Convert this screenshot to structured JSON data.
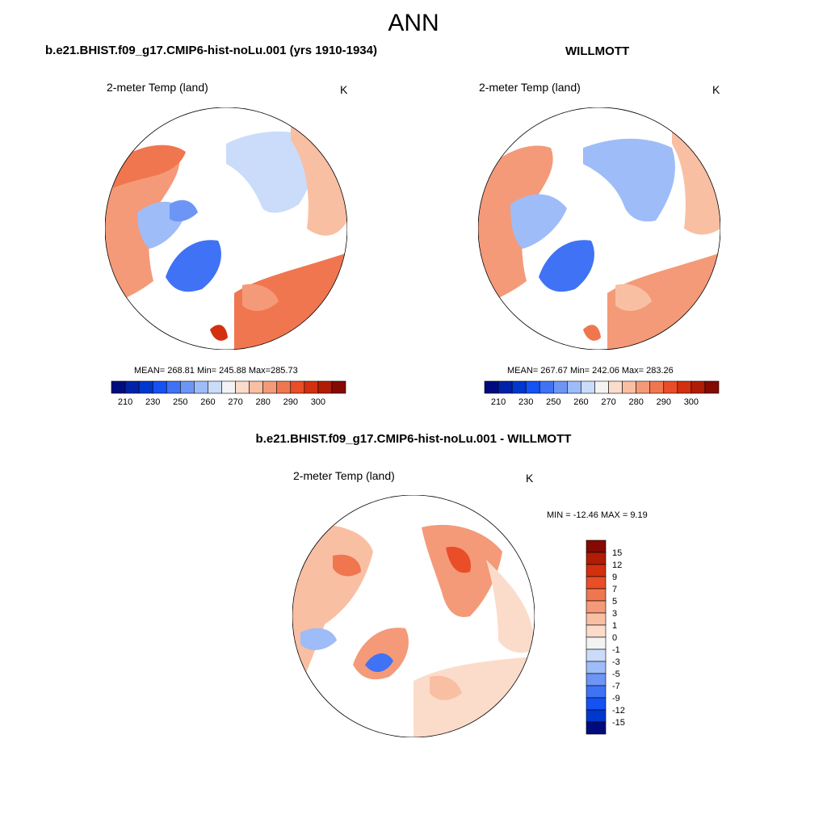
{
  "figure": {
    "title": "ANN",
    "units": "K",
    "variable": "2-meter Temp (land)"
  },
  "panels": [
    {
      "id": "model",
      "title": "b.e21.BHIST.f09_g17.CMIP6-hist-noLu.001 (yrs 1910-1934)",
      "variable": "2-meter Temp (land)",
      "units": "K",
      "stats": "MEAN= 268.81  Min= 245.88  Max=285.73",
      "mean": 268.81,
      "min": 245.88,
      "max": 285.73
    },
    {
      "id": "obs",
      "title": "WILLMOTT",
      "variable": "2-meter Temp (land)",
      "units": "K",
      "stats": "MEAN= 267.67  Min= 242.06  Max= 283.26",
      "mean": 267.67,
      "min": 242.06,
      "max": 283.26
    },
    {
      "id": "diff",
      "title": "b.e21.BHIST.f09_g17.CMIP6-hist-noLu.001 - WILLMOTT",
      "variable": "2-meter Temp (land)",
      "units": "K",
      "stats": "MIN = -12.46 MAX =   9.19",
      "min": -12.46,
      "max": 9.19
    }
  ],
  "colorbars": {
    "abs": {
      "labels": [
        "210",
        "230",
        "250",
        "260",
        "270",
        "280",
        "290",
        "300"
      ],
      "colors": [
        "#000c7e",
        "#0021a8",
        "#0037cc",
        "#1452f2",
        "#3f72f5",
        "#6d95f6",
        "#9ebcf8",
        "#cadcfa",
        "#f3f3f3",
        "#fbdccb",
        "#f9bfa3",
        "#f49a78",
        "#f07650",
        "#e94e28",
        "#d2300e",
        "#b01c05",
        "#850a02"
      ]
    },
    "diff": {
      "labels": [
        "15",
        "12",
        "9",
        "7",
        "5",
        "3",
        "1",
        "0",
        "-1",
        "-3",
        "-5",
        "-7",
        "-9",
        "-12",
        "-15"
      ],
      "colors": [
        "#850a02",
        "#b01c05",
        "#d2300e",
        "#e94e28",
        "#f07650",
        "#f49a78",
        "#f9bfa3",
        "#fbdccb",
        "#f3f3f3",
        "#cadcfa",
        "#9ebcf8",
        "#6d95f6",
        "#3f72f5",
        "#1452f2",
        "#0037cc",
        "#000c7e"
      ]
    }
  }
}
